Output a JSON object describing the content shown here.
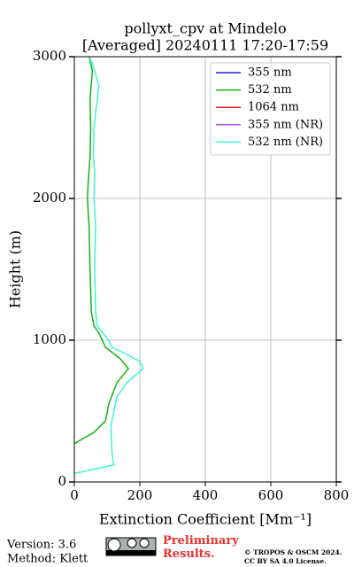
{
  "chart_data": {
    "type": "line",
    "title": "pollyxt_cpv at Mindelo",
    "subtitle": "[Averaged] 20240111 17:20-17:59",
    "xlabel": "Extinction Coefficient [Mm⁻¹]",
    "ylabel": "Height (m)",
    "xlim": [
      0,
      800
    ],
    "xticks": [
      0,
      200,
      400,
      600,
      800
    ],
    "ylim": [
      0,
      3000
    ],
    "yticks": [
      0,
      1000,
      2000,
      3000
    ],
    "grid": true,
    "legend": "upper right",
    "series": [
      {
        "name": "355 nm",
        "color": "#1f1fd6",
        "values": [],
        "y": []
      },
      {
        "name": "532 nm",
        "color": "#13b313",
        "values": [
          0,
          60,
          95,
          105,
          130,
          165,
          140,
          95,
          75,
          60,
          52,
          48,
          45,
          40,
          42,
          48,
          50,
          48,
          55,
          45
        ],
        "y": [
          270,
          350,
          430,
          550,
          700,
          800,
          870,
          950,
          1050,
          1100,
          1200,
          1500,
          1800,
          2000,
          2100,
          2300,
          2500,
          2700,
          2900,
          3000
        ]
      },
      {
        "name": "1064 nm",
        "color": "#e01b1b",
        "values": [],
        "y": []
      },
      {
        "name": "355 nm (NR)",
        "color": "#a855e8",
        "values": [],
        "y": []
      },
      {
        "name": "532 nm (NR)",
        "color": "#3ff5d0",
        "values": [
          0,
          120,
          115,
          112,
          130,
          160,
          210,
          200,
          160,
          115,
          105,
          70,
          65,
          62,
          65,
          60,
          62,
          58,
          60,
          65,
          75,
          55,
          45
        ],
        "y": [
          60,
          120,
          200,
          400,
          600,
          700,
          800,
          850,
          900,
          950,
          1000,
          1100,
          1200,
          1500,
          1800,
          2000,
          2200,
          2300,
          2500,
          2600,
          2800,
          2950,
          3000
        ]
      }
    ]
  },
  "footer": {
    "version": "Version: 3.6",
    "method": "Method: Klett",
    "preliminary": "Preliminary Results.",
    "license": "© TROPOS & OSCM 2024. CC BY SA 4.0 License."
  }
}
